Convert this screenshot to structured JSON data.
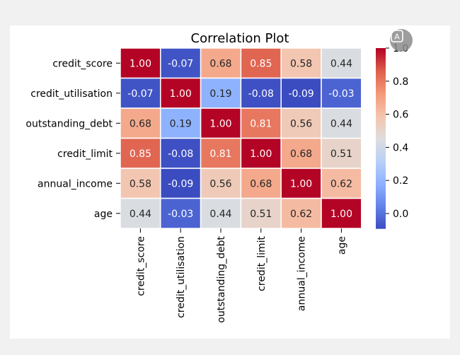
{
  "chart_data": {
    "type": "heatmap",
    "title": "Correlation Plot",
    "row_labels": [
      "credit_score",
      "credit_utilisation",
      "outstanding_debt",
      "credit_limit",
      "annual_income",
      "age"
    ],
    "col_labels": [
      "credit_score",
      "credit_utilisation",
      "outstanding_debt",
      "credit_limit",
      "annual_income",
      "age"
    ],
    "values": [
      [
        1.0,
        -0.07,
        0.68,
        0.85,
        0.58,
        0.44
      ],
      [
        -0.07,
        1.0,
        0.19,
        -0.08,
        -0.09,
        -0.03
      ],
      [
        0.68,
        0.19,
        1.0,
        0.81,
        0.56,
        0.44
      ],
      [
        0.85,
        -0.08,
        0.81,
        1.0,
        0.68,
        0.51
      ],
      [
        0.58,
        -0.09,
        0.56,
        0.68,
        1.0,
        0.62
      ],
      [
        0.44,
        -0.03,
        0.44,
        0.51,
        0.62,
        1.0
      ]
    ],
    "value_format": "2 decimals",
    "colormap": "coolwarm",
    "colorbar": {
      "range": [
        -0.09,
        1.0
      ],
      "ticks": [
        0.0,
        0.2,
        0.4,
        0.6,
        0.8,
        1.0
      ],
      "tick_labels": [
        "0.0",
        "0.2",
        "0.4",
        "0.6",
        "0.8",
        "1.0"
      ]
    }
  },
  "overlay_button": {
    "icon": "translate-icon",
    "glyph": "A"
  }
}
